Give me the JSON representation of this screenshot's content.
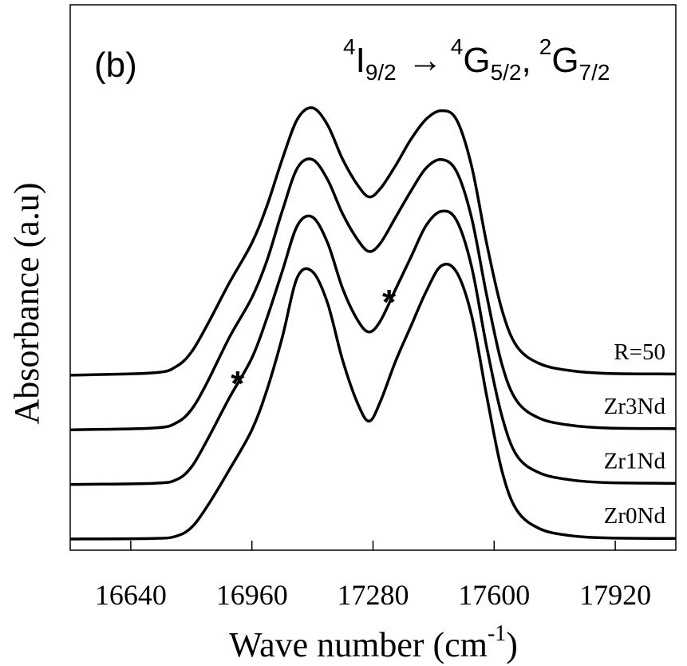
{
  "chart_data": {
    "type": "line",
    "panel_label": "(b)",
    "annotation": {
      "level_sup": "4",
      "level_base": "I",
      "level_sub": "9/2",
      "arrow": "→",
      "final1_sup": "4",
      "final1_base": "G",
      "final1_sub": "5/2",
      "separator": ",",
      "final2_sup": "2",
      "final2_base": "G",
      "final2_sub": "7/2"
    },
    "xlabel": "Wave number (cm",
    "xlabel_sup": "-1",
    "xlabel_close": ")",
    "ylabel": "Absorbance (a.u)",
    "xlim": [
      16480,
      18080
    ],
    "x_ticks": [
      16640,
      16960,
      17280,
      17600,
      17920
    ],
    "x_tick_labels": [
      "16640",
      "16960",
      "17280",
      "17600",
      "17920"
    ],
    "y_ticks_visible": false,
    "grid": false,
    "series": [
      {
        "name": "Zr0Nd",
        "offset": 0,
        "points": [
          [
            16480,
            0
          ],
          [
            16700,
            0.01
          ],
          [
            16760,
            0.05
          ],
          [
            16800,
            0.2
          ],
          [
            16840,
            0.55
          ],
          [
            16900,
            1.2
          ],
          [
            16960,
            1.9
          ],
          [
            17000,
            2.6
          ],
          [
            17040,
            3.5
          ],
          [
            17080,
            4.55
          ],
          [
            17120,
            4.65
          ],
          [
            17160,
            4.1
          ],
          [
            17200,
            3.1
          ],
          [
            17240,
            2.35
          ],
          [
            17270,
            2.05
          ],
          [
            17300,
            2.4
          ],
          [
            17340,
            3.1
          ],
          [
            17380,
            3.7
          ],
          [
            17420,
            4.3
          ],
          [
            17460,
            4.75
          ],
          [
            17500,
            4.65
          ],
          [
            17540,
            3.9
          ],
          [
            17580,
            2.5
          ],
          [
            17620,
            1.2
          ],
          [
            17660,
            0.5
          ],
          [
            17720,
            0.18
          ],
          [
            17800,
            0.06
          ],
          [
            17900,
            0.02
          ],
          [
            18080,
            0.01
          ]
        ]
      },
      {
        "name": "Zr1Nd",
        "offset": 0.95,
        "points": [
          [
            16480,
            0
          ],
          [
            16700,
            0.02
          ],
          [
            16760,
            0.08
          ],
          [
            16800,
            0.3
          ],
          [
            16840,
            0.75
          ],
          [
            16900,
            1.5
          ],
          [
            16960,
            2.2
          ],
          [
            17000,
            2.9
          ],
          [
            17040,
            3.7
          ],
          [
            17080,
            4.5
          ],
          [
            17120,
            4.65
          ],
          [
            17160,
            4.2
          ],
          [
            17200,
            3.4
          ],
          [
            17240,
            2.85
          ],
          [
            17270,
            2.65
          ],
          [
            17300,
            2.85
          ],
          [
            17340,
            3.4
          ],
          [
            17380,
            3.95
          ],
          [
            17420,
            4.5
          ],
          [
            17460,
            4.75
          ],
          [
            17500,
            4.6
          ],
          [
            17540,
            3.8
          ],
          [
            17580,
            2.4
          ],
          [
            17620,
            1.2
          ],
          [
            17660,
            0.5
          ],
          [
            17720,
            0.2
          ],
          [
            17800,
            0.08
          ],
          [
            17900,
            0.03
          ],
          [
            18080,
            0.02
          ]
        ]
      },
      {
        "name": "Zr3Nd",
        "offset": 1.9,
        "points": [
          [
            16480,
            0
          ],
          [
            16700,
            0.03
          ],
          [
            16760,
            0.12
          ],
          [
            16800,
            0.35
          ],
          [
            16840,
            0.8
          ],
          [
            16900,
            1.6
          ],
          [
            16960,
            2.3
          ],
          [
            17000,
            2.95
          ],
          [
            17040,
            3.8
          ],
          [
            17080,
            4.55
          ],
          [
            17120,
            4.7
          ],
          [
            17160,
            4.35
          ],
          [
            17200,
            3.75
          ],
          [
            17240,
            3.3
          ],
          [
            17270,
            3.1
          ],
          [
            17300,
            3.25
          ],
          [
            17340,
            3.7
          ],
          [
            17380,
            4.15
          ],
          [
            17420,
            4.55
          ],
          [
            17460,
            4.7
          ],
          [
            17500,
            4.5
          ],
          [
            17540,
            3.7
          ],
          [
            17580,
            2.35
          ],
          [
            17620,
            1.15
          ],
          [
            17660,
            0.5
          ],
          [
            17720,
            0.2
          ],
          [
            17800,
            0.08
          ],
          [
            17900,
            0.03
          ],
          [
            18080,
            0.02
          ]
        ]
      },
      {
        "name": "R=50",
        "offset": 2.85,
        "points": [
          [
            16480,
            0
          ],
          [
            16700,
            0.04
          ],
          [
            16760,
            0.15
          ],
          [
            16800,
            0.4
          ],
          [
            16840,
            0.85
          ],
          [
            16900,
            1.6
          ],
          [
            16960,
            2.3
          ],
          [
            17000,
            2.95
          ],
          [
            17040,
            3.75
          ],
          [
            17080,
            4.45
          ],
          [
            17120,
            4.65
          ],
          [
            17160,
            4.35
          ],
          [
            17200,
            3.75
          ],
          [
            17240,
            3.3
          ],
          [
            17270,
            3.1
          ],
          [
            17300,
            3.25
          ],
          [
            17340,
            3.65
          ],
          [
            17380,
            4.1
          ],
          [
            17420,
            4.45
          ],
          [
            17460,
            4.6
          ],
          [
            17500,
            4.45
          ],
          [
            17540,
            3.65
          ],
          [
            17580,
            2.3
          ],
          [
            17620,
            1.15
          ],
          [
            17660,
            0.5
          ],
          [
            17720,
            0.2
          ],
          [
            17800,
            0.08
          ],
          [
            17900,
            0.03
          ],
          [
            18080,
            0.02
          ]
        ]
      }
    ],
    "markers": [
      {
        "symbol": "*",
        "x": 16935,
        "series": "Zr1Nd"
      },
      {
        "symbol": "*",
        "x": 17335,
        "series": "Zr1Nd"
      }
    ]
  }
}
